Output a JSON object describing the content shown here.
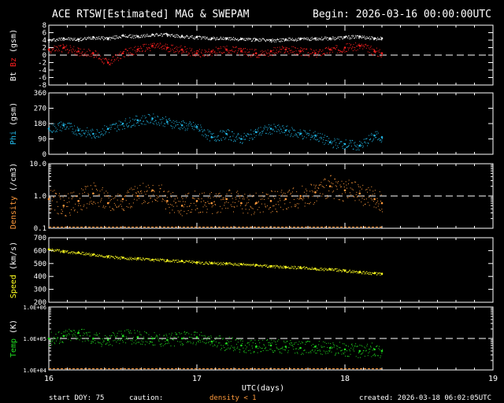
{
  "header": {
    "title": "ACE RTSW[Estimated] MAG & SWEPAM",
    "begin": "Begin: 2026-03-16 00:00:00UTC"
  },
  "footer": {
    "start_doy": "start DOY:  75",
    "caution": "caution:",
    "density_note": "density < 1",
    "created": "created: 2026-03-18 06:02:05UTC"
  },
  "colors": {
    "bt": "#ffffff",
    "bz": "#ff2020",
    "phi": "#22b8e8",
    "density": "#ff9a3c",
    "speed": "#ffff20",
    "temp": "#20dd20",
    "axes": "#ffffff",
    "reference": "#ffffff"
  },
  "chart_data": [
    {
      "type": "scatter",
      "panel": "mag",
      "ylabel_parts": [
        "Bt",
        "Bz",
        "(gsm)"
      ],
      "ylim": [
        -8,
        8
      ],
      "ticks": [
        "8",
        "6",
        "4",
        "2",
        "0",
        "-2",
        "-4",
        "-6",
        "-8"
      ],
      "reference_line": 0,
      "series": [
        {
          "name": "Bt",
          "x": [
            16.0,
            16.1,
            16.2,
            16.3,
            16.4,
            16.5,
            16.6,
            16.7,
            16.8,
            16.9,
            17.0,
            17.1,
            17.2,
            17.3,
            17.4,
            17.5,
            17.6,
            17.7,
            17.8,
            17.9,
            18.0,
            18.1,
            18.2,
            18.25
          ],
          "values": [
            4.0,
            4.5,
            4.2,
            4.8,
            4.5,
            5.2,
            5.0,
            5.5,
            5.5,
            5.0,
            4.8,
            4.5,
            4.5,
            4.3,
            4.2,
            4.0,
            4.2,
            4.3,
            4.5,
            4.5,
            4.8,
            5.0,
            4.5,
            4.5
          ]
        },
        {
          "name": "Bz",
          "x": [
            16.0,
            16.1,
            16.2,
            16.3,
            16.4,
            16.5,
            16.6,
            16.7,
            16.8,
            16.9,
            17.0,
            17.1,
            17.2,
            17.3,
            17.4,
            17.5,
            17.6,
            17.7,
            17.8,
            17.9,
            18.0,
            18.1,
            18.2,
            18.25
          ],
          "values": [
            1.5,
            2.0,
            1.0,
            0.5,
            -2.0,
            0.5,
            1.5,
            2.5,
            2.0,
            1.5,
            0.5,
            1.0,
            1.5,
            1.0,
            0.5,
            1.0,
            1.5,
            1.0,
            0.5,
            1.5,
            2.0,
            2.5,
            1.0,
            0.5
          ]
        }
      ]
    },
    {
      "type": "scatter",
      "panel": "phi",
      "ylabel_parts": [
        "Phi",
        "(gsm)"
      ],
      "ylim": [
        0,
        360
      ],
      "ticks": [
        "360",
        "270",
        "180",
        "90",
        "0"
      ],
      "series": [
        {
          "name": "Phi",
          "x": [
            16.0,
            16.1,
            16.2,
            16.3,
            16.4,
            16.5,
            16.6,
            16.7,
            16.8,
            16.9,
            17.0,
            17.1,
            17.2,
            17.3,
            17.4,
            17.5,
            17.6,
            17.7,
            17.8,
            17.9,
            18.0,
            18.1,
            18.2,
            18.25
          ],
          "values": [
            150,
            170,
            140,
            120,
            150,
            180,
            200,
            210,
            190,
            170,
            160,
            100,
            120,
            90,
            130,
            150,
            140,
            120,
            110,
            70,
            60,
            50,
            110,
            100
          ]
        }
      ]
    },
    {
      "type": "scatter",
      "panel": "density",
      "ylabel_parts": [
        "Density",
        "(/cm3)"
      ],
      "log": true,
      "ylim": [
        0.1,
        10
      ],
      "ticks": [
        "10.0",
        "1.0",
        "0.1"
      ],
      "reference_line": 1,
      "series": [
        {
          "name": "Density",
          "x": [
            16.0,
            16.1,
            16.2,
            16.3,
            16.4,
            16.5,
            16.6,
            16.7,
            16.8,
            16.9,
            17.0,
            17.1,
            17.2,
            17.3,
            17.4,
            17.5,
            17.6,
            17.7,
            17.8,
            17.9,
            18.0,
            18.1,
            18.2,
            18.25
          ],
          "values": [
            0.8,
            0.5,
            0.7,
            1.2,
            0.6,
            0.8,
            1.0,
            1.5,
            0.7,
            0.5,
            0.7,
            0.6,
            0.8,
            0.6,
            0.6,
            0.7,
            0.8,
            1.0,
            1.3,
            2.0,
            1.5,
            1.2,
            0.8,
            0.6
          ]
        }
      ]
    },
    {
      "type": "scatter",
      "panel": "speed",
      "ylabel_parts": [
        "Speed",
        "(km/s)"
      ],
      "ylim": [
        200,
        700
      ],
      "ticks": [
        "700",
        "600",
        "500",
        "400",
        "300",
        "200"
      ],
      "series": [
        {
          "name": "Speed",
          "x": [
            16.0,
            16.1,
            16.2,
            16.3,
            16.4,
            16.5,
            16.6,
            16.7,
            16.8,
            16.9,
            17.0,
            17.1,
            17.2,
            17.3,
            17.4,
            17.5,
            17.6,
            17.7,
            17.8,
            17.9,
            18.0,
            18.1,
            18.2,
            18.25
          ],
          "values": [
            610,
            595,
            585,
            570,
            555,
            545,
            540,
            530,
            525,
            520,
            510,
            505,
            500,
            495,
            490,
            480,
            475,
            470,
            460,
            455,
            445,
            435,
            425,
            420
          ]
        }
      ]
    },
    {
      "type": "scatter",
      "panel": "temp",
      "ylabel_parts": [
        "Temp",
        "(K)"
      ],
      "log": true,
      "ylim": [
        10000,
        1000000
      ],
      "ticks": [
        "1.0E+06",
        "1.0E+05",
        "1.0E+04"
      ],
      "reference_line": 100000,
      "series": [
        {
          "name": "Temp",
          "x": [
            16.0,
            16.1,
            16.2,
            16.3,
            16.4,
            16.5,
            16.6,
            16.7,
            16.8,
            16.9,
            17.0,
            17.1,
            17.2,
            17.3,
            17.4,
            17.5,
            17.6,
            17.7,
            17.8,
            17.9,
            18.0,
            18.1,
            18.2,
            18.25
          ],
          "values": [
            100000,
            120000,
            150000,
            100000,
            90000,
            120000,
            110000,
            100000,
            90000,
            100000,
            110000,
            80000,
            70000,
            60000,
            55000,
            60000,
            55000,
            50000,
            55000,
            50000,
            45000,
            40000,
            45000,
            40000
          ]
        }
      ]
    }
  ],
  "x_axis": {
    "label": "UTC(days)",
    "xlim": [
      16,
      19
    ],
    "ticks": [
      "16",
      "17",
      "18",
      "19"
    ]
  }
}
